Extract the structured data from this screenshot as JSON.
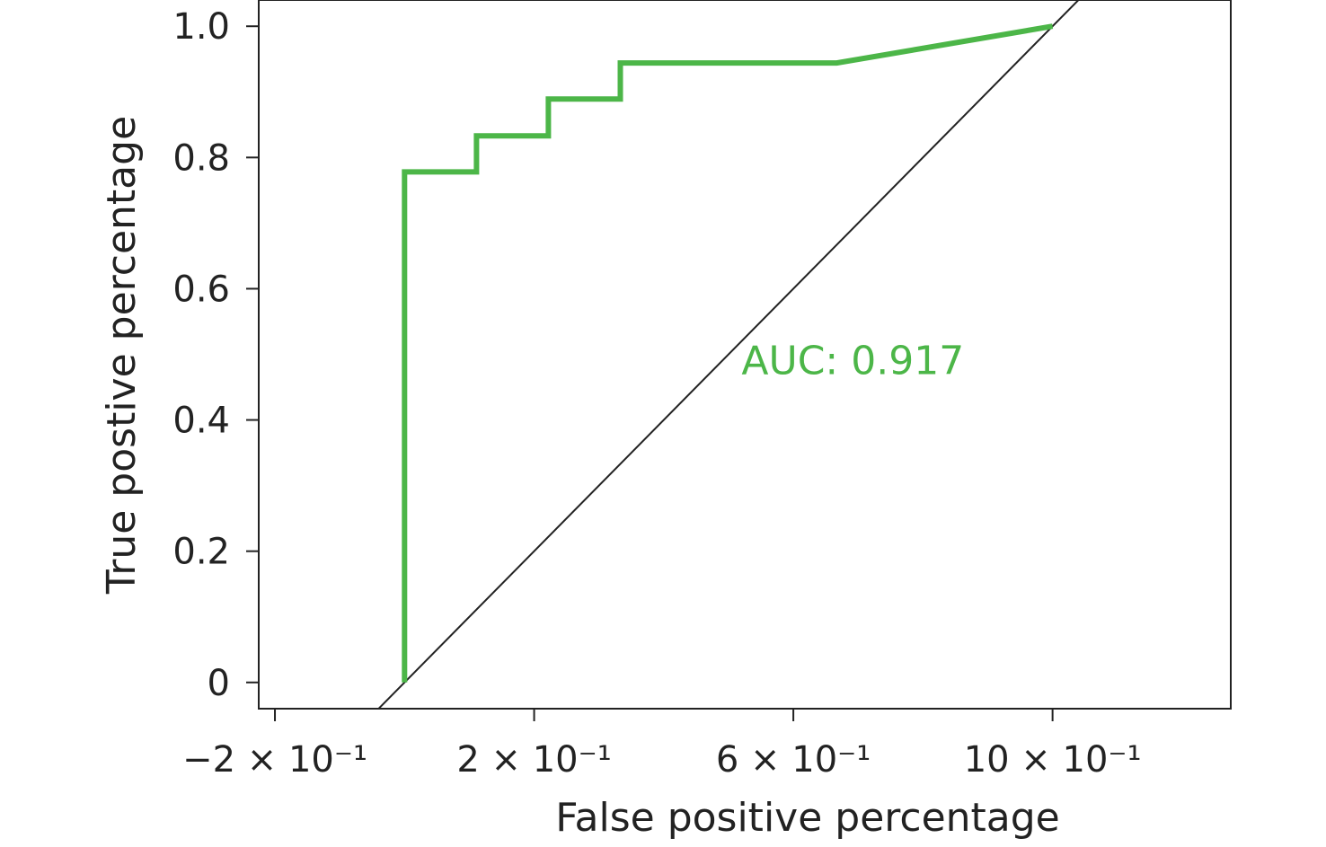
{
  "chart_data": {
    "type": "line",
    "title": "",
    "xlabel": "False positive percentage",
    "ylabel": "True postive percentage",
    "xlim": [
      -0.225,
      1.275
    ],
    "ylim": [
      -0.04,
      1.04
    ],
    "x_ticks": [
      {
        "value": -0.2,
        "label": "−2 × 10⁻¹"
      },
      {
        "value": 0.2,
        "label": "2 × 10⁻¹"
      },
      {
        "value": 0.6,
        "label": "6 × 10⁻¹"
      },
      {
        "value": 1.0,
        "label": "10 × 10⁻¹"
      }
    ],
    "y_ticks": [
      {
        "value": 0,
        "label": "0"
      },
      {
        "value": 0.2,
        "label": "0.2"
      },
      {
        "value": 0.4,
        "label": "0.4"
      },
      {
        "value": 0.6,
        "label": "0.6"
      },
      {
        "value": 0.8,
        "label": "0.8"
      },
      {
        "value": 1.0,
        "label": "1.0"
      }
    ],
    "grid": false,
    "legend": "none",
    "series": [
      {
        "color": "#4cb648",
        "x": [
          0.0,
          0.0,
          0.111,
          0.111,
          0.222,
          0.222,
          0.333,
          0.333,
          0.667,
          1.0
        ],
        "y": [
          0.0,
          0.778,
          0.778,
          0.833,
          0.833,
          0.889,
          0.889,
          0.944,
          0.944,
          1.0
        ]
      }
    ],
    "reference_line": {
      "x": [
        -0.05,
        1.05
      ],
      "y": [
        -0.05,
        1.05
      ],
      "color": "#222222"
    },
    "annotations": [
      {
        "text": "AUC: 0.917",
        "x": 0.52,
        "y": 0.47,
        "color": "#4cb648"
      }
    ]
  }
}
